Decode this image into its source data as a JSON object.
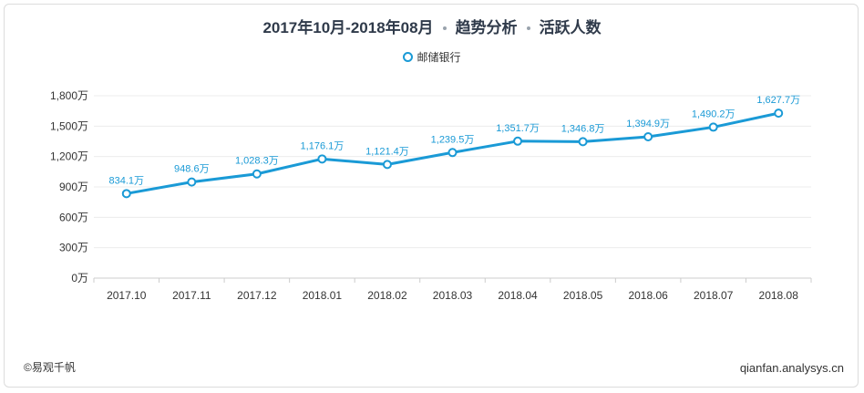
{
  "header": {
    "period": "2017年10月-2018年08月",
    "analysis": "趋势分析",
    "metric": "活跃人数"
  },
  "footer": {
    "copyright": "©易观千帆",
    "site": "qianfan.analysys.cn"
  },
  "colors": {
    "series": "#1a9ad6",
    "label": "#1a9ad6",
    "grid": "#ececec",
    "axis": "#cccccc",
    "text": "#333333"
  },
  "chart_data": {
    "type": "line",
    "categories": [
      "2017.10",
      "2017.11",
      "2017.12",
      "2018.01",
      "2018.02",
      "2018.03",
      "2018.04",
      "2018.05",
      "2018.06",
      "2018.07",
      "2018.08"
    ],
    "series": [
      {
        "name": "邮储银行",
        "values": [
          834.1,
          948.6,
          1028.3,
          1176.1,
          1121.4,
          1239.5,
          1351.7,
          1346.8,
          1394.9,
          1490.2,
          1627.7
        ],
        "labels": [
          "834.1万",
          "948.6万",
          "1,028.3万",
          "1,176.1万",
          "1,121.4万",
          "1,239.5万",
          "1,351.7万",
          "1,346.8万",
          "1,394.9万",
          "1,490.2万",
          "1,627.7万"
        ]
      }
    ],
    "y_ticks": [
      0,
      300,
      600,
      900,
      1200,
      1500,
      1800
    ],
    "y_tick_labels": [
      "0万",
      "300万",
      "600万",
      "900万",
      "1,200万",
      "1,500万",
      "1,800万"
    ],
    "ylim": [
      0,
      1800
    ],
    "grid": true,
    "legend_position": "top-center"
  }
}
